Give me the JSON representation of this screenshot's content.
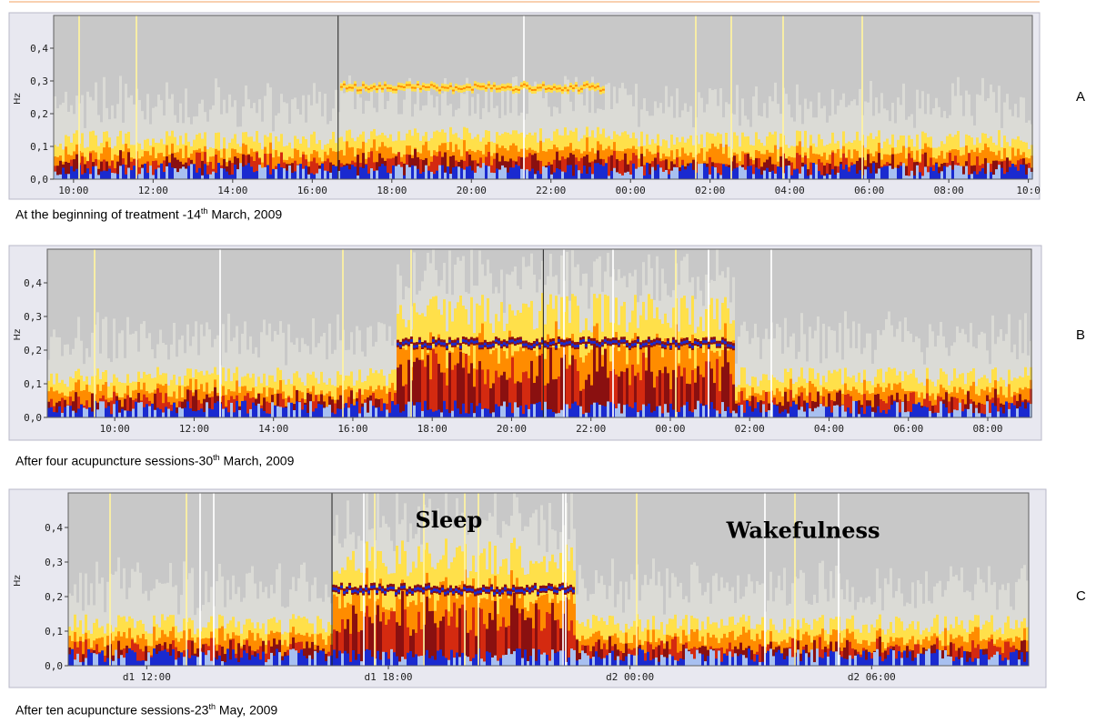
{
  "colors": {
    "background_gray": "#c8c8c8",
    "pale": "#ffffe0",
    "yellow": "#ffe04a",
    "orange": "#ff8c00",
    "red": "#d42a10",
    "dark_red": "#8a1010",
    "blue": "#1a2ad0",
    "light_blue": "#a8c0f0",
    "frame_bg": "#e8e8f0"
  },
  "chart_data": [
    {
      "id": "A",
      "type": "heatmap",
      "panel_letter": "A",
      "caption_before": "At the beginning of treatment -14",
      "caption_sup": "th",
      "caption_after": " March, 2009",
      "ylabel": "Hz",
      "ylim": [
        0,
        0.5
      ],
      "y_ticks": [
        "0,0",
        "0,1",
        "0,2",
        "0,3",
        "0,4"
      ],
      "x_range_hours": [
        9.5,
        34.1
      ],
      "x_ticks": [
        {
          "label": "10:00",
          "h": 10
        },
        {
          "label": "12:00",
          "h": 12
        },
        {
          "label": "14:00",
          "h": 14
        },
        {
          "label": "16:00",
          "h": 16
        },
        {
          "label": "18:00",
          "h": 18
        },
        {
          "label": "20:00",
          "h": 20
        },
        {
          "label": "22:00",
          "h": 22
        },
        {
          "label": "00:00",
          "h": 24
        },
        {
          "label": "02:00",
          "h": 26
        },
        {
          "label": "04:00",
          "h": 28
        },
        {
          "label": "06:00",
          "h": 30
        },
        {
          "label": "08:00",
          "h": 32
        },
        {
          "label": "10:0",
          "h": 34
        }
      ],
      "marker_hour": 16.65,
      "sleep_band": {
        "start_h": 16.7,
        "end_h": 23.3,
        "hz": 0.28
      },
      "labels": []
    },
    {
      "id": "B",
      "type": "heatmap",
      "panel_letter": "B",
      "caption_before": "After four acupuncture sessions-30",
      "caption_sup": "th",
      "caption_after": " March, 2009",
      "ylabel": "Hz",
      "ylim": [
        0,
        0.5
      ],
      "y_ticks": [
        "0,0",
        "0,1",
        "0,2",
        "0,3",
        "0,4"
      ],
      "x_range_hours": [
        8.3,
        33.1
      ],
      "x_ticks": [
        {
          "label": "10:00",
          "h": 10
        },
        {
          "label": "12:00",
          "h": 12
        },
        {
          "label": "14:00",
          "h": 14
        },
        {
          "label": "16:00",
          "h": 16
        },
        {
          "label": "18:00",
          "h": 18
        },
        {
          "label": "20:00",
          "h": 20
        },
        {
          "label": "22:00",
          "h": 22
        },
        {
          "label": "00:00",
          "h": 24
        },
        {
          "label": "02:00",
          "h": 26
        },
        {
          "label": "04:00",
          "h": 28
        },
        {
          "label": "06:00",
          "h": 30
        },
        {
          "label": "08:00",
          "h": 32
        }
      ],
      "marker_hour": 20.8,
      "sleep_band": {
        "start_h": 17.1,
        "end_h": 25.6,
        "hz": 0.22
      },
      "labels": []
    },
    {
      "id": "C",
      "type": "heatmap",
      "panel_letter": "C",
      "caption_before": "After ten acupuncture sessions-23",
      "caption_sup": "th",
      "caption_after": " May, 2009",
      "ylabel": "Hz",
      "ylim": [
        0,
        0.5
      ],
      "y_ticks": [
        "0,0",
        "0,1",
        "0,2",
        "0,3",
        "0,4"
      ],
      "x_range_hours": [
        10.05,
        33.9
      ],
      "x_ticks": [
        {
          "label": "d1 12:00",
          "h": 12
        },
        {
          "label": "d1 18:00",
          "h": 18
        },
        {
          "label": "d2 00:00",
          "h": 24
        },
        {
          "label": "d2 06:00",
          "h": 30
        }
      ],
      "marker_hour": 16.6,
      "sleep_band": {
        "start_h": 16.6,
        "end_h": 22.6,
        "hz": 0.22
      },
      "labels": [
        {
          "text": "Sleep",
          "h": 19.5,
          "hz": 0.4
        },
        {
          "text": "Wakefulness",
          "h": 28.3,
          "hz": 0.37
        }
      ]
    }
  ]
}
